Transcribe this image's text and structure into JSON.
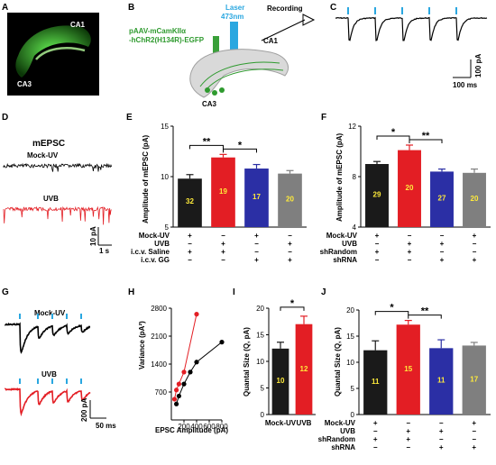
{
  "panels": {
    "A": {
      "label": "A",
      "ca1": "CA1",
      "ca3": "CA3"
    },
    "B": {
      "label": "B",
      "virus_line1": "pAAV-mCamKIIα",
      "virus_line2": "-hChR2(H134R)-EGFP",
      "laser_line1": "Laser",
      "laser_line2": "473nm",
      "recording": "Recording",
      "ca1": "CA1",
      "ca3": "CA3",
      "colors": {
        "virus": "#2e9a2e",
        "laser": "#2aa7e0"
      }
    },
    "C": {
      "label": "C",
      "scale_y": "100 pA",
      "scale_x": "100 ms"
    },
    "D": {
      "label": "D",
      "title": "mEPSC",
      "mock_label": "Mock-UV",
      "uvb_label": "UVB",
      "scale_y": "10 pA",
      "scale_x": "1 s",
      "colors": {
        "mock": "#000000",
        "uvb": "#e31e24"
      }
    },
    "E": {
      "label": "E",
      "ylabel": "Amplitude of mEPSC (pA)",
      "row_labels": [
        "Mock-UV",
        "UVB",
        "i.c.v. Saline",
        "i.c.v. GG"
      ],
      "signs": [
        [
          "+",
          "−",
          "+",
          "−"
        ],
        [
          "−",
          "+",
          "−",
          "+"
        ],
        [
          "+",
          "+",
          "−",
          "−"
        ],
        [
          "−",
          "−",
          "+",
          "+"
        ]
      ]
    },
    "F": {
      "label": "F",
      "ylabel": "Amplitude of mEPSC (pA)",
      "row_labels": [
        "Mock-UV",
        "UVB",
        "shRandom",
        "shRNA"
      ],
      "signs": [
        [
          "+",
          "−",
          "−",
          "+"
        ],
        [
          "−",
          "+",
          "+",
          "−"
        ],
        [
          "+",
          "+",
          "−",
          "−"
        ],
        [
          "−",
          "−",
          "+",
          "+"
        ]
      ]
    },
    "G": {
      "label": "G",
      "mock_label": "Mock-UV",
      "uvb_label": "UVB",
      "scale_y": "200 pA",
      "scale_x": "50 ms"
    },
    "H": {
      "label": "H",
      "ylabel": "Variance (pA²)",
      "xlabel": "EPSC Amplitude (pA)"
    },
    "I": {
      "label": "I",
      "ylabel": "Quantal Size (Q, pA)"
    },
    "J": {
      "label": "J",
      "ylabel": "Quantal Size (Q, pA)",
      "row_labels": [
        "Mock-UV",
        "UVB",
        "shRandom",
        "shRNA"
      ],
      "signs": [
        [
          "+",
          "−",
          "−",
          "+"
        ],
        [
          "−",
          "+",
          "+",
          "−"
        ],
        [
          "+",
          "+",
          "−",
          "−"
        ],
        [
          "−",
          "−",
          "+",
          "+"
        ]
      ]
    }
  },
  "chart_data": [
    {
      "id": "E",
      "type": "bar",
      "ylim": [
        5,
        15
      ],
      "yticks": [
        5,
        10,
        15
      ],
      "values": [
        9.8,
        11.9,
        10.8,
        10.3
      ],
      "errors": [
        0.4,
        0.3,
        0.4,
        0.3
      ],
      "n_labels": [
        "32",
        "19",
        "17",
        "20"
      ],
      "colors": [
        "#1a1a1a",
        "#e31e24",
        "#2b2fa5",
        "#7f7f7f"
      ],
      "significance": [
        {
          "from": 0,
          "to": 1,
          "label": "**"
        },
        {
          "from": 1,
          "to": 2,
          "label": "*"
        }
      ]
    },
    {
      "id": "F",
      "type": "bar",
      "ylim": [
        4,
        12
      ],
      "yticks": [
        4,
        8,
        12
      ],
      "values": [
        9.0,
        10.1,
        8.4,
        8.3
      ],
      "errors": [
        0.2,
        0.4,
        0.2,
        0.3
      ],
      "n_labels": [
        "29",
        "20",
        "27",
        "20"
      ],
      "colors": [
        "#1a1a1a",
        "#e31e24",
        "#2b2fa5",
        "#7f7f7f"
      ],
      "significance": [
        {
          "from": 0,
          "to": 1,
          "label": "*"
        },
        {
          "from": 1,
          "to": 2,
          "label": "**"
        }
      ]
    },
    {
      "id": "H",
      "type": "scatter",
      "xlim": [
        0,
        800
      ],
      "ylim": [
        0,
        2800
      ],
      "xticks": [
        200,
        400,
        600,
        800
      ],
      "yticks": [
        700,
        1400,
        2100,
        2800
      ],
      "series": [
        {
          "color": "#e31e24",
          "x": [
            50,
            80,
            120,
            200,
            400
          ],
          "y": [
            520,
            750,
            900,
            1200,
            2650
          ]
        },
        {
          "color": "#000000",
          "x": [
            80,
            120,
            200,
            300,
            400,
            800
          ],
          "y": [
            400,
            600,
            900,
            1200,
            1450,
            1950
          ]
        }
      ]
    },
    {
      "id": "I",
      "type": "bar",
      "ylim": [
        0,
        20
      ],
      "yticks": [
        0,
        5,
        10,
        15,
        20
      ],
      "categories": [
        "Mock-UV",
        "UVB"
      ],
      "values": [
        12.4,
        17.0
      ],
      "errors": [
        1.2,
        1.5
      ],
      "n_labels": [
        "10",
        "12"
      ],
      "colors": [
        "#1a1a1a",
        "#e31e24"
      ],
      "significance": [
        {
          "from": 0,
          "to": 1,
          "label": "*"
        }
      ]
    },
    {
      "id": "J",
      "type": "bar",
      "ylim": [
        0,
        20
      ],
      "yticks": [
        0,
        5,
        10,
        15,
        20
      ],
      "values": [
        12.3,
        17.2,
        12.7,
        13.2
      ],
      "errors": [
        1.8,
        0.8,
        1.6,
        0.6
      ],
      "n_labels": [
        "11",
        "15",
        "11",
        "17"
      ],
      "colors": [
        "#1a1a1a",
        "#e31e24",
        "#2b2fa5",
        "#7f7f7f"
      ],
      "significance": [
        {
          "from": 0,
          "to": 1,
          "label": "*"
        },
        {
          "from": 1,
          "to": 2,
          "label": "**"
        }
      ]
    }
  ]
}
